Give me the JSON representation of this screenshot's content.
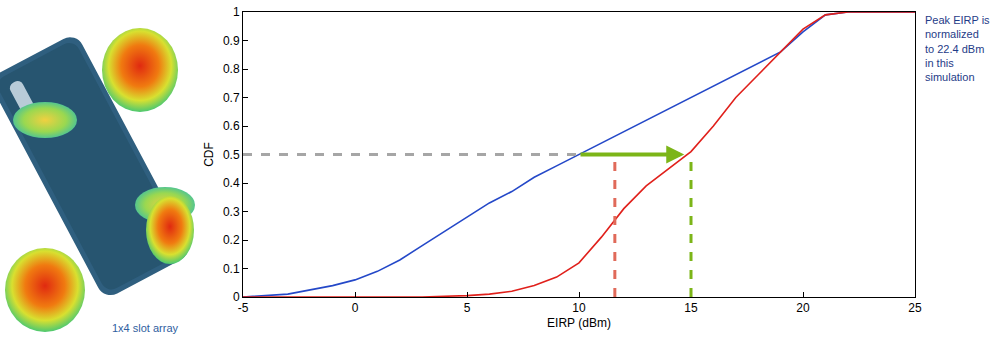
{
  "chart_data": {
    "type": "line",
    "x_label": "EIRP (dBm)",
    "y_label": "CDF",
    "xlim": [
      -5,
      25
    ],
    "ylim": [
      0,
      1
    ],
    "xticks": [
      -5,
      0,
      5,
      10,
      15,
      20,
      25
    ],
    "yticks": [
      0,
      0.1,
      0.2,
      0.3,
      0.4,
      0.5,
      0.6,
      0.7,
      0.8,
      0.9,
      1
    ],
    "grid": false,
    "series": [
      {
        "color": "#2448c8",
        "x": [
          -5,
          -3,
          -1,
          0,
          1,
          2,
          3,
          4,
          5,
          6,
          7,
          8,
          9,
          10,
          11,
          12,
          13,
          14,
          15,
          16,
          17,
          18,
          19,
          20,
          21,
          22,
          25
        ],
        "values": [
          0,
          0.01,
          0.04,
          0.06,
          0.09,
          0.13,
          0.18,
          0.23,
          0.28,
          0.33,
          0.37,
          0.42,
          0.46,
          0.5,
          0.54,
          0.58,
          0.62,
          0.66,
          0.7,
          0.74,
          0.78,
          0.82,
          0.86,
          0.93,
          0.99,
          1,
          1
        ]
      },
      {
        "color": "#e0201b",
        "x": [
          -5,
          3,
          5,
          6,
          7,
          8,
          9,
          10,
          11,
          12,
          13,
          14,
          15,
          16,
          17,
          18,
          19,
          20,
          21,
          22,
          25
        ],
        "values": [
          0,
          0,
          0.005,
          0.01,
          0.02,
          0.04,
          0.07,
          0.12,
          0.21,
          0.31,
          0.39,
          0.45,
          0.51,
          0.6,
          0.7,
          0.78,
          0.86,
          0.94,
          0.99,
          1,
          1
        ]
      }
    ],
    "reference_lines": [
      {
        "x": [
          -5,
          10
        ],
        "y": [
          0.5,
          0.5
        ],
        "color": "#a6a6a6",
        "line_style": "dashed"
      },
      {
        "x": [
          11.6,
          11.6
        ],
        "y": [
          0,
          0.5
        ],
        "color": "#e06a5a",
        "line_style": "dashed"
      },
      {
        "x": [
          15,
          15
        ],
        "y": [
          0,
          0.49
        ],
        "color": "#7cb518",
        "line_style": "dashed"
      }
    ],
    "arrow": {
      "x": [
        10,
        14.7
      ],
      "y": [
        0.5,
        0.5
      ],
      "color": "#7cb518"
    },
    "annotations": [
      {
        "text": "Peak EIRP is normalized to 22.4 dBm in this simulation",
        "color": "#1f3c88"
      }
    ],
    "image_label": "1x4 slot array"
  }
}
